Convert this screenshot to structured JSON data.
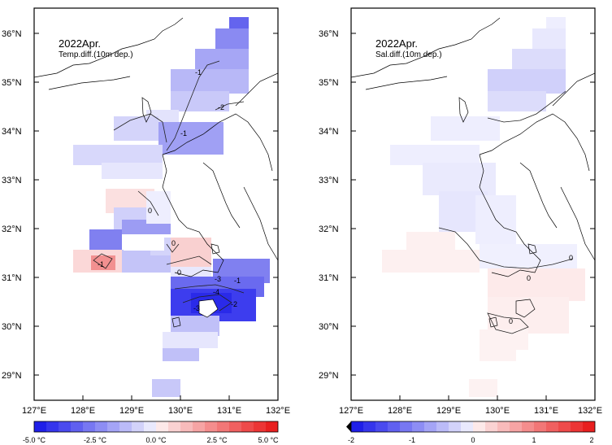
{
  "left_panel": {
    "title": "2022Apr.",
    "subtitle": "Temp.diff.(10m dep.)",
    "colorbar_labels": [
      "-5.0 °C",
      "-2.5 °C",
      "0.0 °C",
      "2.5 °C",
      "5.0 °C"
    ],
    "contour_labels": [
      "-1",
      "-2",
      "-1",
      "0",
      "0",
      "0",
      "-1",
      "-3",
      "-4",
      "-3",
      "-2",
      "-1"
    ]
  },
  "right_panel": {
    "title": "2022Apr.",
    "subtitle": "Sal.diff.(10m dep.)",
    "colorbar_labels": [
      "-2",
      "-1",
      "0",
      "1",
      "2"
    ],
    "contour_labels": [
      "0",
      "0",
      "0"
    ]
  },
  "axes": {
    "lat_labels": [
      "36°N",
      "35°N",
      "34°N",
      "33°N",
      "32°N",
      "31°N",
      "30°N",
      "29°N"
    ],
    "lon_labels": [
      "127°E",
      "128°E",
      "129°E",
      "130°E",
      "131°E",
      "132°E"
    ]
  },
  "colors": {
    "cold": "#3a3af0",
    "warm": "#f03a3a",
    "frame": "#000000"
  }
}
